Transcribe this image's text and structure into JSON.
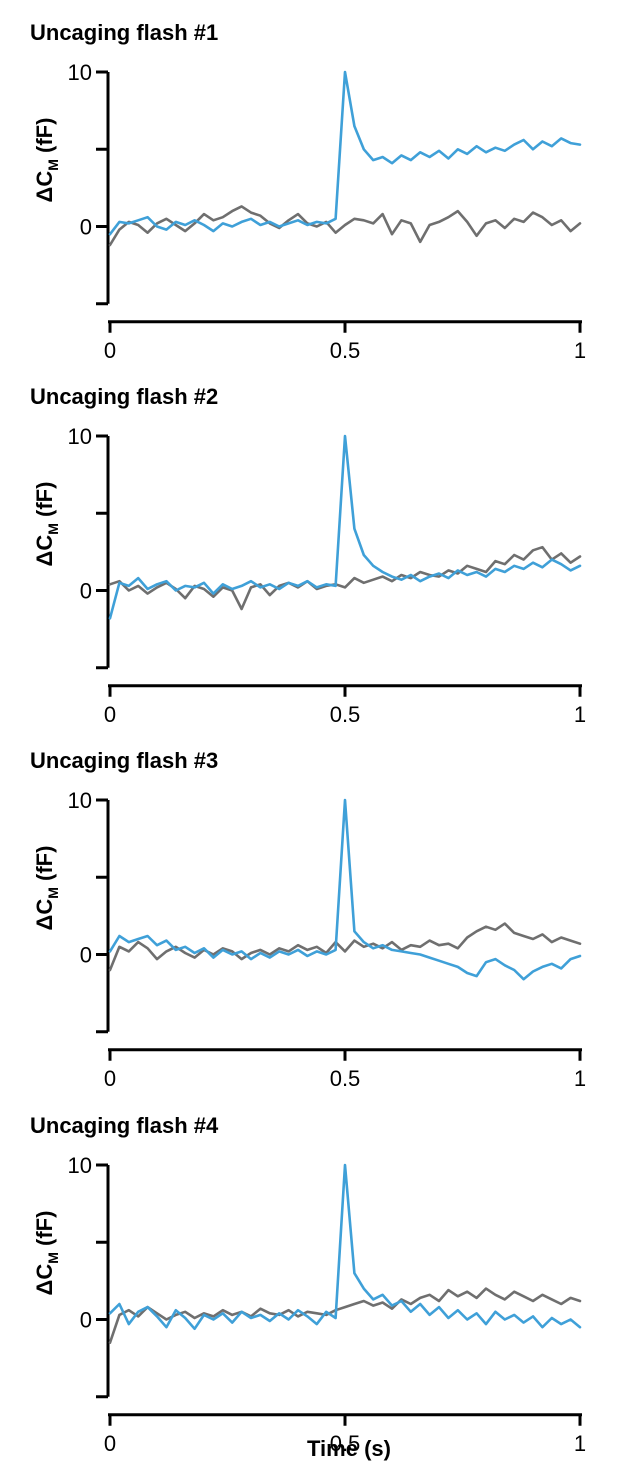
{
  "chart_data": {
    "type": "line",
    "xlabel": "Time (s)",
    "ylabel_main": "ΔC",
    "ylabel_sub": "M",
    "ylabel_unit": " (fF)",
    "x_ticks": [
      0,
      0.5,
      1
    ],
    "x_tick_labels": [
      "0",
      "0.5",
      "1"
    ],
    "y_ticks": [
      -5,
      0,
      5,
      10
    ],
    "y_tick_labels": [
      "",
      "0",
      "",
      "10"
    ],
    "xlim": [
      0,
      1
    ],
    "ylim": [
      -5,
      10
    ],
    "colors": {
      "control": "#6f6f6f",
      "flash": "#3fa0d8"
    },
    "panels": [
      {
        "title": "Uncaging flash #1",
        "series": [
          {
            "color_key": "control",
            "values": [
              -1.2,
              -0.2,
              0.3,
              0.1,
              -0.4,
              0.2,
              0.5,
              0.1,
              -0.3,
              0.2,
              0.8,
              0.4,
              0.6,
              1.0,
              1.3,
              0.9,
              0.7,
              0.2,
              -0.1,
              0.4,
              0.8,
              0.2,
              0.0,
              0.3,
              -0.4,
              0.1,
              0.5,
              0.4,
              0.2,
              0.8,
              -0.5,
              0.4,
              0.2,
              -1.0,
              0.1,
              0.3,
              0.6,
              1.0,
              0.3,
              -0.6,
              0.2,
              0.4,
              -0.1,
              0.5,
              0.3,
              0.9,
              0.6,
              0.1,
              0.4,
              -0.3,
              0.2
            ]
          },
          {
            "color_key": "flash",
            "values": [
              -0.5,
              0.3,
              0.2,
              0.4,
              0.6,
              0.0,
              -0.2,
              0.3,
              0.1,
              0.4,
              0.1,
              -0.3,
              0.2,
              0.0,
              0.3,
              0.5,
              0.1,
              0.3,
              0.0,
              0.2,
              0.4,
              0.1,
              0.3,
              0.2,
              0.5,
              10.0,
              6.5,
              5.0,
              4.3,
              4.5,
              4.1,
              4.6,
              4.3,
              4.8,
              4.5,
              4.9,
              4.4,
              5.0,
              4.7,
              5.2,
              4.8,
              5.1,
              4.9,
              5.3,
              5.6,
              5.0,
              5.5,
              5.2,
              5.7,
              5.4,
              5.3
            ]
          }
        ]
      },
      {
        "title": "Uncaging flash #2",
        "series": [
          {
            "color_key": "control",
            "values": [
              0.4,
              0.6,
              0.0,
              0.3,
              -0.2,
              0.2,
              0.5,
              0.1,
              -0.5,
              0.3,
              0.1,
              -0.4,
              0.2,
              0.0,
              -1.2,
              0.2,
              0.4,
              -0.3,
              0.3,
              0.5,
              0.2,
              0.6,
              0.1,
              0.3,
              0.4,
              0.2,
              0.8,
              0.5,
              0.7,
              0.9,
              0.6,
              1.0,
              0.8,
              1.2,
              1.0,
              0.9,
              1.3,
              1.1,
              1.6,
              1.4,
              1.2,
              1.9,
              1.7,
              2.3,
              2.0,
              2.6,
              2.8,
              2.0,
              2.4,
              1.8,
              2.2
            ]
          },
          {
            "color_key": "flash",
            "values": [
              -1.8,
              0.5,
              0.3,
              0.8,
              0.1,
              0.4,
              0.6,
              0.0,
              0.3,
              0.2,
              0.5,
              -0.2,
              0.4,
              0.1,
              0.3,
              0.6,
              0.2,
              0.4,
              0.1,
              0.5,
              0.3,
              0.6,
              0.2,
              0.4,
              0.3,
              10.0,
              4.0,
              2.3,
              1.6,
              1.2,
              0.9,
              0.7,
              1.0,
              0.6,
              0.9,
              1.1,
              0.8,
              1.3,
              1.0,
              1.2,
              0.9,
              1.4,
              1.2,
              1.6,
              1.4,
              1.8,
              1.5,
              2.0,
              1.7,
              1.3,
              1.6
            ]
          }
        ]
      },
      {
        "title": "Uncaging flash #3",
        "series": [
          {
            "color_key": "control",
            "values": [
              -1.0,
              0.5,
              0.2,
              0.8,
              0.4,
              -0.3,
              0.2,
              0.5,
              0.1,
              -0.2,
              0.3,
              0.0,
              0.4,
              0.2,
              -0.3,
              0.1,
              0.3,
              0.0,
              0.4,
              0.2,
              0.6,
              0.3,
              0.5,
              0.1,
              0.8,
              0.2,
              0.9,
              0.5,
              0.7,
              0.4,
              0.8,
              0.3,
              0.6,
              0.5,
              0.9,
              0.6,
              0.7,
              0.4,
              1.1,
              1.5,
              1.8,
              1.6,
              2.0,
              1.4,
              1.2,
              1.0,
              1.3,
              0.8,
              1.1,
              0.9,
              0.7
            ]
          },
          {
            "color_key": "flash",
            "values": [
              0.2,
              1.2,
              0.8,
              1.0,
              1.2,
              0.6,
              0.9,
              0.3,
              0.5,
              0.1,
              0.4,
              -0.2,
              0.3,
              0.0,
              0.2,
              -0.3,
              0.1,
              -0.2,
              0.2,
              0.0,
              0.3,
              -0.1,
              0.2,
              0.0,
              0.3,
              10.0,
              1.5,
              0.8,
              0.4,
              0.6,
              0.3,
              0.2,
              0.1,
              0.0,
              -0.2,
              -0.4,
              -0.6,
              -0.8,
              -1.2,
              -1.4,
              -0.5,
              -0.3,
              -0.7,
              -1.0,
              -1.6,
              -1.1,
              -0.8,
              -0.6,
              -0.9,
              -0.3,
              -0.1
            ]
          }
        ]
      },
      {
        "title": "Uncaging flash #4",
        "series": [
          {
            "color_key": "control",
            "values": [
              -1.5,
              0.3,
              0.6,
              0.2,
              0.8,
              0.4,
              0.0,
              0.3,
              0.5,
              0.1,
              0.4,
              0.2,
              0.6,
              0.3,
              0.5,
              0.2,
              0.7,
              0.4,
              0.3,
              0.6,
              0.2,
              0.5,
              0.4,
              0.3,
              0.6,
              0.8,
              1.0,
              1.2,
              0.9,
              1.1,
              0.7,
              1.3,
              1.0,
              1.4,
              1.6,
              1.2,
              1.9,
              1.5,
              1.8,
              1.4,
              2.0,
              1.6,
              1.3,
              1.8,
              1.5,
              1.2,
              1.6,
              1.3,
              1.0,
              1.4,
              1.2
            ]
          },
          {
            "color_key": "flash",
            "values": [
              0.4,
              1.0,
              -0.3,
              0.5,
              0.8,
              0.2,
              -0.5,
              0.6,
              0.1,
              -0.6,
              0.3,
              0.0,
              0.4,
              -0.2,
              0.5,
              0.1,
              0.3,
              -0.1,
              0.4,
              0.0,
              0.6,
              0.2,
              -0.3,
              0.5,
              0.1,
              10.0,
              3.0,
              2.0,
              1.3,
              1.6,
              0.9,
              1.2,
              0.5,
              1.0,
              0.3,
              0.8,
              0.1,
              0.6,
              0.0,
              0.4,
              -0.3,
              0.5,
              0.0,
              0.3,
              -0.2,
              0.2,
              -0.5,
              0.1,
              -0.3,
              0.0,
              -0.5
            ]
          }
        ]
      }
    ]
  }
}
